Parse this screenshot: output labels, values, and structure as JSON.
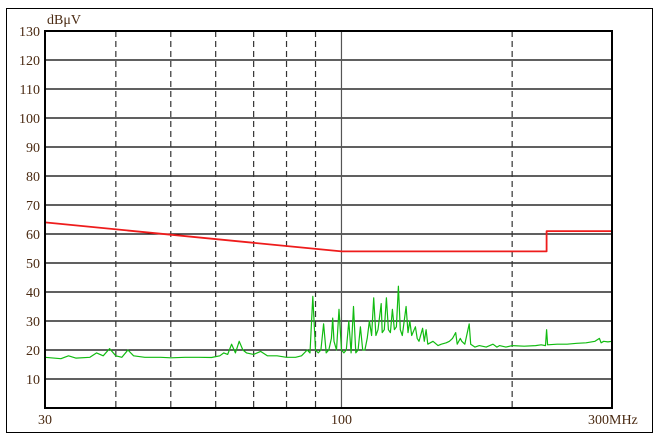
{
  "chart_data": {
    "type": "line",
    "title": "",
    "ylabel": "dBμV",
    "xlabel": "",
    "x_scale": "log",
    "xlim": [
      30,
      300
    ],
    "ylim": [
      0,
      130
    ],
    "y_ticks": [
      10,
      20,
      30,
      40,
      50,
      60,
      70,
      80,
      90,
      100,
      110,
      120,
      130
    ],
    "x_tick_labels": [
      {
        "value": 30,
        "label": "30"
      },
      {
        "value": 100,
        "label": "100"
      },
      {
        "value": 300,
        "label": "300MHz"
      }
    ],
    "x_gridlines": [
      {
        "value": 40,
        "style": "dashed"
      },
      {
        "value": 50,
        "style": "dashed"
      },
      {
        "value": 60,
        "style": "dashed"
      },
      {
        "value": 70,
        "style": "dashed"
      },
      {
        "value": 80,
        "style": "dashed"
      },
      {
        "value": 90,
        "style": "dashed"
      },
      {
        "value": 100,
        "style": "solid"
      },
      {
        "value": 200,
        "style": "dashed"
      }
    ],
    "grid": true,
    "series": [
      {
        "color": "#ee1c1c",
        "points": [
          [
            30,
            64
          ],
          [
            100,
            54
          ],
          [
            230,
            54
          ],
          [
            230,
            61
          ],
          [
            300,
            61
          ]
        ]
      },
      {
        "color": "#11bb11",
        "points": [
          [
            30,
            17.5
          ],
          [
            32,
            17
          ],
          [
            33,
            18
          ],
          [
            34,
            17.2
          ],
          [
            36,
            17.5
          ],
          [
            37,
            19
          ],
          [
            38,
            18
          ],
          [
            39,
            20.5
          ],
          [
            40,
            18
          ],
          [
            41,
            17.5
          ],
          [
            42,
            20
          ],
          [
            43,
            18
          ],
          [
            45,
            17.5
          ],
          [
            48,
            17.5
          ],
          [
            50,
            17.3
          ],
          [
            53,
            17.5
          ],
          [
            56,
            17.5
          ],
          [
            59,
            17.4
          ],
          [
            61,
            18
          ],
          [
            62,
            19
          ],
          [
            63,
            18.5
          ],
          [
            64,
            22
          ],
          [
            65,
            19
          ],
          [
            66,
            23
          ],
          [
            67,
            20
          ],
          [
            68,
            19
          ],
          [
            70,
            18.5
          ],
          [
            72,
            19.5
          ],
          [
            74,
            18
          ],
          [
            77,
            18
          ],
          [
            80,
            17.5
          ],
          [
            83,
            17.5
          ],
          [
            85,
            18
          ],
          [
            87,
            20
          ],
          [
            88,
            19
          ],
          [
            89,
            38.5
          ],
          [
            90,
            20
          ],
          [
            91,
            19
          ],
          [
            92,
            20
          ],
          [
            93,
            29
          ],
          [
            94,
            19
          ],
          [
            95,
            20
          ],
          [
            96,
            24
          ],
          [
            96.5,
            31
          ],
          [
            97,
            23
          ],
          [
            98,
            20
          ],
          [
            99,
            34
          ],
          [
            100,
            20
          ],
          [
            101,
            19
          ],
          [
            102,
            20
          ],
          [
            103,
            30
          ],
          [
            104,
            19
          ],
          [
            105,
            35
          ],
          [
            106,
            19
          ],
          [
            107,
            20
          ],
          [
            108,
            28
          ],
          [
            109,
            20
          ],
          [
            110,
            20
          ],
          [
            111,
            24
          ],
          [
            112,
            30
          ],
          [
            113,
            25
          ],
          [
            114,
            38
          ],
          [
            115,
            25
          ],
          [
            116,
            27
          ],
          [
            117.5,
            36
          ],
          [
            118,
            26
          ],
          [
            119,
            27
          ],
          [
            120,
            38
          ],
          [
            121,
            27
          ],
          [
            122,
            26
          ],
          [
            123,
            34
          ],
          [
            124,
            27
          ],
          [
            125,
            28
          ],
          [
            126,
            42
          ],
          [
            127,
            27
          ],
          [
            128,
            25
          ],
          [
            130,
            35
          ],
          [
            131,
            26
          ],
          [
            132,
            30
          ],
          [
            133,
            25
          ],
          [
            135,
            28
          ],
          [
            136,
            24
          ],
          [
            137,
            23
          ],
          [
            139,
            27.5
          ],
          [
            140,
            23
          ],
          [
            141,
            27
          ],
          [
            142,
            22
          ],
          [
            145,
            23
          ],
          [
            148,
            21.5
          ],
          [
            150,
            22
          ],
          [
            153,
            22.5
          ],
          [
            155,
            23
          ],
          [
            157,
            24
          ],
          [
            158,
            25
          ],
          [
            159,
            26
          ],
          [
            160,
            22
          ],
          [
            162,
            24
          ],
          [
            163,
            23
          ],
          [
            165,
            22
          ],
          [
            168,
            29
          ],
          [
            169,
            22
          ],
          [
            172,
            21
          ],
          [
            175,
            21.5
          ],
          [
            180,
            21
          ],
          [
            185,
            22
          ],
          [
            188,
            21
          ],
          [
            190,
            21.5
          ],
          [
            195,
            21
          ],
          [
            200,
            21.5
          ],
          [
            210,
            21.3
          ],
          [
            220,
            21.5
          ],
          [
            225,
            21.8
          ],
          [
            229,
            21.5
          ],
          [
            230,
            27
          ],
          [
            231,
            21.8
          ],
          [
            240,
            22
          ],
          [
            250,
            22
          ],
          [
            260,
            22.3
          ],
          [
            270,
            22.5
          ],
          [
            280,
            23
          ],
          [
            285,
            24
          ],
          [
            287,
            22.5
          ],
          [
            290,
            23
          ],
          [
            295,
            22.8
          ],
          [
            300,
            23
          ]
        ]
      }
    ]
  }
}
